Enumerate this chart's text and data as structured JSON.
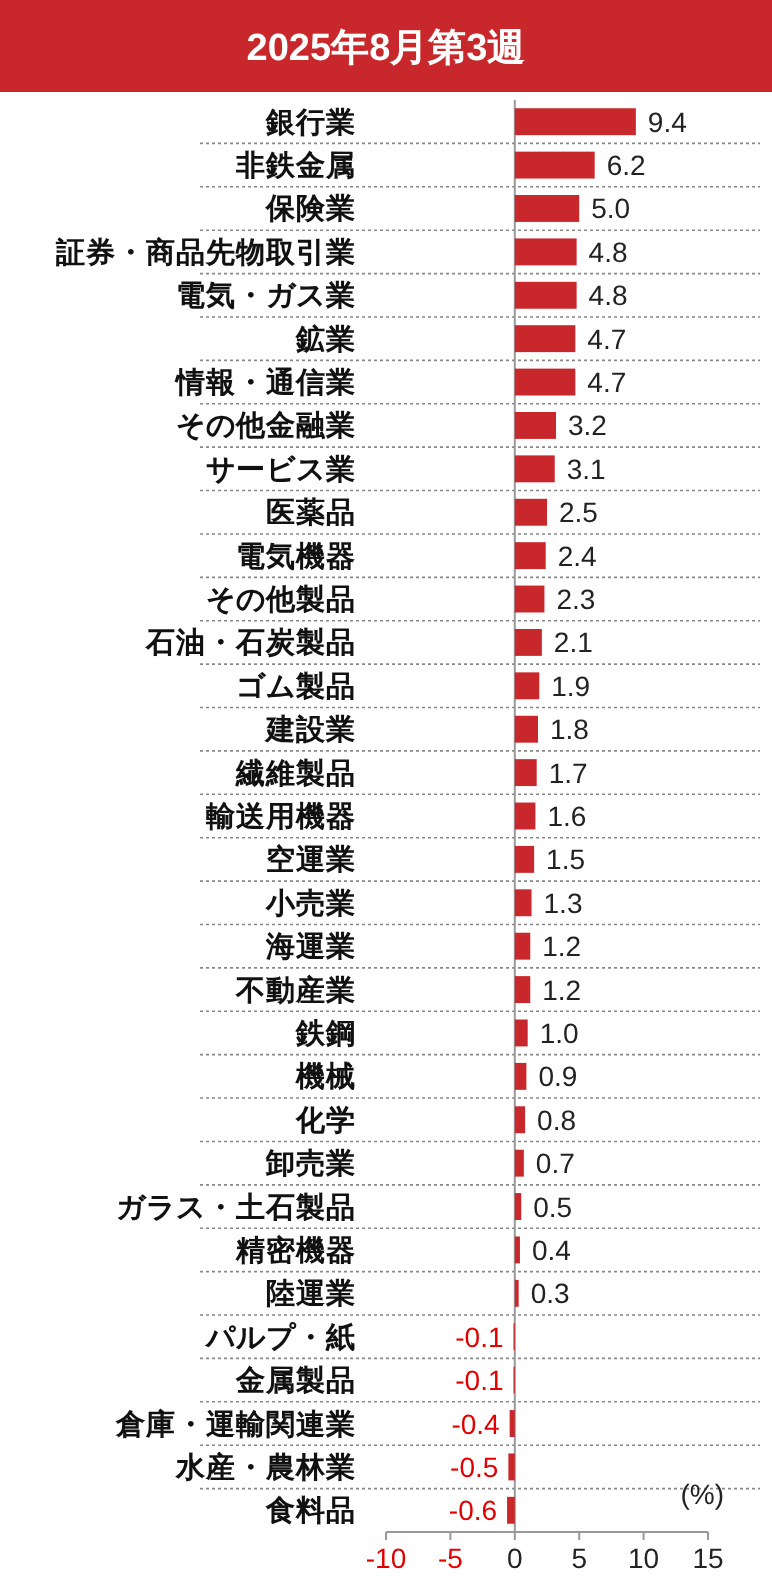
{
  "chart_data": {
    "type": "bar",
    "orientation": "horizontal",
    "title": "2025年8月第3週",
    "categories": [
      "銀行業",
      "非鉄金属",
      "保険業",
      "証券・商品先物取引業",
      "電気・ガス業",
      "鉱業",
      "情報・通信業",
      "その他金融業",
      "サービス業",
      "医薬品",
      "電気機器",
      "その他製品",
      "石油・石炭製品",
      "ゴム製品",
      "建設業",
      "繊維製品",
      "輸送用機器",
      "空運業",
      "小売業",
      "海運業",
      "不動産業",
      "鉄鋼",
      "機械",
      "化学",
      "卸売業",
      "ガラス・土石製品",
      "精密機器",
      "陸運業",
      "パルプ・紙",
      "金属製品",
      "倉庫・運輸関連業",
      "水産・農林業",
      "食料品"
    ],
    "values": [
      9.4,
      6.2,
      5.0,
      4.8,
      4.8,
      4.7,
      4.7,
      3.2,
      3.1,
      2.5,
      2.4,
      2.3,
      2.1,
      1.9,
      1.8,
      1.7,
      1.6,
      1.5,
      1.3,
      1.2,
      1.2,
      1.0,
      0.9,
      0.8,
      0.7,
      0.5,
      0.4,
      0.3,
      -0.1,
      -0.1,
      -0.4,
      -0.5,
      -0.6
    ],
    "value_labels": [
      "9.4",
      "6.2",
      "5.0",
      "4.8",
      "4.8",
      "4.7",
      "4.7",
      "3.2",
      "3.1",
      "2.5",
      "2.4",
      "2.3",
      "2.1",
      "1.9",
      "1.8",
      "1.7",
      "1.6",
      "1.5",
      "1.3",
      "1.2",
      "1.2",
      "1.0",
      "0.9",
      "0.8",
      "0.7",
      "0.5",
      "0.4",
      "0.3",
      "-0.1",
      "-0.1",
      "-0.4",
      "-0.5",
      "-0.6"
    ],
    "color": "#c8282c",
    "xlim": [
      -10,
      15
    ],
    "xticks": [
      -10,
      -5,
      0,
      5,
      10,
      15
    ],
    "grid": "y",
    "annotations": [
      "(%)"
    ]
  }
}
